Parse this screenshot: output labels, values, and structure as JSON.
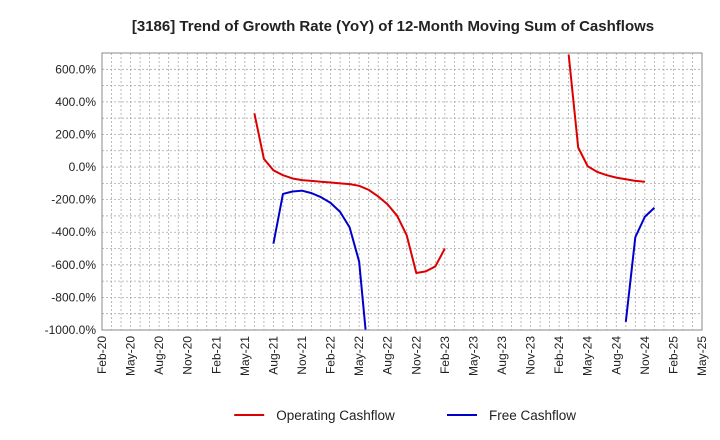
{
  "chart_data": {
    "type": "line",
    "title": "[3186]  Trend of Growth Rate (YoY) of 12-Month Moving Sum of Cashflows",
    "xlabel": "",
    "ylabel": "",
    "ylim": [
      -1000,
      700
    ],
    "y_ticks": [
      -1000,
      -800,
      -600,
      -400,
      -200,
      0,
      200,
      400,
      600
    ],
    "y_tick_labels": [
      "-1000.0%",
      "-800.0%",
      "-600.0%",
      "-400.0%",
      "-200.0%",
      "0.0%",
      "200.0%",
      "400.0%",
      "600.0%"
    ],
    "x_tick_labels": [
      "Feb-20",
      "May-20",
      "Aug-20",
      "Nov-20",
      "Feb-21",
      "May-21",
      "Aug-21",
      "Nov-21",
      "Feb-22",
      "May-22",
      "Aug-22",
      "Nov-22",
      "Feb-23",
      "May-23",
      "Aug-23",
      "Nov-23",
      "Feb-24",
      "May-24",
      "Aug-24",
      "Nov-24",
      "Feb-25",
      "May-25"
    ],
    "x_range": [
      "Feb-20",
      "May-25"
    ],
    "grid": true,
    "legend_position": "bottom-center",
    "series": [
      {
        "name": "Operating Cashflow",
        "color": "#dd0000",
        "points": [
          [
            "Jun-21",
            330
          ],
          [
            "Jul-21",
            50
          ],
          [
            "Aug-21",
            -20
          ],
          [
            "Sep-21",
            -50
          ],
          [
            "Oct-21",
            -70
          ],
          [
            "Nov-21",
            -80
          ],
          [
            "Dec-21",
            -85
          ],
          [
            "Jan-22",
            -90
          ],
          [
            "Feb-22",
            -95
          ],
          [
            "Mar-22",
            -100
          ],
          [
            "Apr-22",
            -105
          ],
          [
            "May-22",
            -115
          ],
          [
            "Jun-22",
            -140
          ],
          [
            "Jul-22",
            -180
          ],
          [
            "Aug-22",
            -230
          ],
          [
            "Sep-22",
            -300
          ],
          [
            "Oct-22",
            -420
          ],
          [
            "Nov-22",
            -650
          ],
          [
            "Dec-22",
            -640
          ],
          [
            "Jan-23",
            -610
          ],
          [
            "Feb-23",
            -500
          ],
          null,
          [
            "Mar-24",
            690
          ],
          [
            "Apr-24",
            120
          ],
          [
            "May-24",
            5
          ],
          [
            "Jun-24",
            -30
          ],
          [
            "Jul-24",
            -50
          ],
          [
            "Aug-24",
            -65
          ],
          [
            "Sep-24",
            -75
          ],
          [
            "Oct-24",
            -85
          ],
          [
            "Nov-24",
            -90
          ]
        ]
      },
      {
        "name": "Free Cashflow",
        "color": "#0000cc",
        "points": [
          [
            "Aug-21",
            -470
          ],
          [
            "Sep-21",
            -165
          ],
          [
            "Oct-21",
            -150
          ],
          [
            "Nov-21",
            -145
          ],
          [
            "Dec-21",
            -160
          ],
          [
            "Jan-22",
            -185
          ],
          [
            "Feb-22",
            -220
          ],
          [
            "Mar-22",
            -275
          ],
          [
            "Apr-22",
            -370
          ],
          [
            "May-22",
            -580
          ],
          [
            "Jun-22",
            -1200
          ],
          null,
          [
            "Sep-24",
            -950
          ],
          [
            "Oct-24",
            -430
          ],
          [
            "Nov-24",
            -305
          ],
          [
            "Dec-24",
            -250
          ]
        ]
      }
    ]
  }
}
